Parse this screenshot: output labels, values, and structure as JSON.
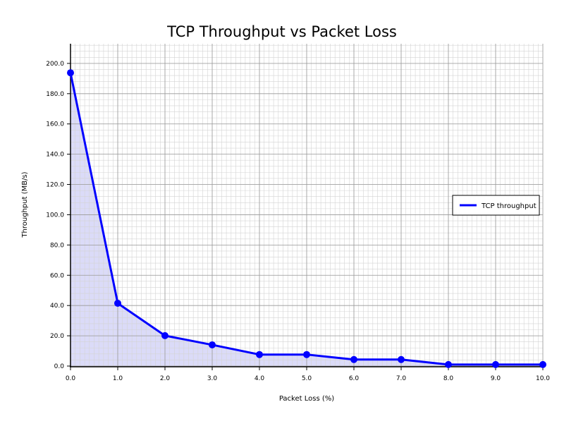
{
  "chart_data": {
    "type": "area",
    "title": "TCP Throughput vs Packet Loss",
    "xlabel": "Packet Loss (%)",
    "ylabel": "Throughput (MB/s)",
    "xlim": [
      0,
      10
    ],
    "ylim": [
      0,
      213
    ],
    "grid": true,
    "legend_position": "right",
    "xticks": [
      "0.0",
      "1.0",
      "2.0",
      "3.0",
      "4.0",
      "5.0",
      "6.0",
      "7.0",
      "8.0",
      "9.0",
      "10.0"
    ],
    "yticks": [
      "0.0",
      "20.0",
      "40.0",
      "60.0",
      "80.0",
      "100.0",
      "120.0",
      "140.0",
      "160.0",
      "180.0",
      "200.0"
    ],
    "series": [
      {
        "name": "TCP throughput",
        "color": "#0000ff",
        "fill": "#d5d5f7",
        "x": [
          0,
          1,
          2,
          3,
          4,
          5,
          6,
          7,
          8,
          9,
          10
        ],
        "values": [
          193.8,
          41.5,
          20.1,
          14.0,
          7.6,
          7.6,
          4.3,
          4.3,
          1.0,
          1.0,
          1.0
        ]
      }
    ]
  }
}
